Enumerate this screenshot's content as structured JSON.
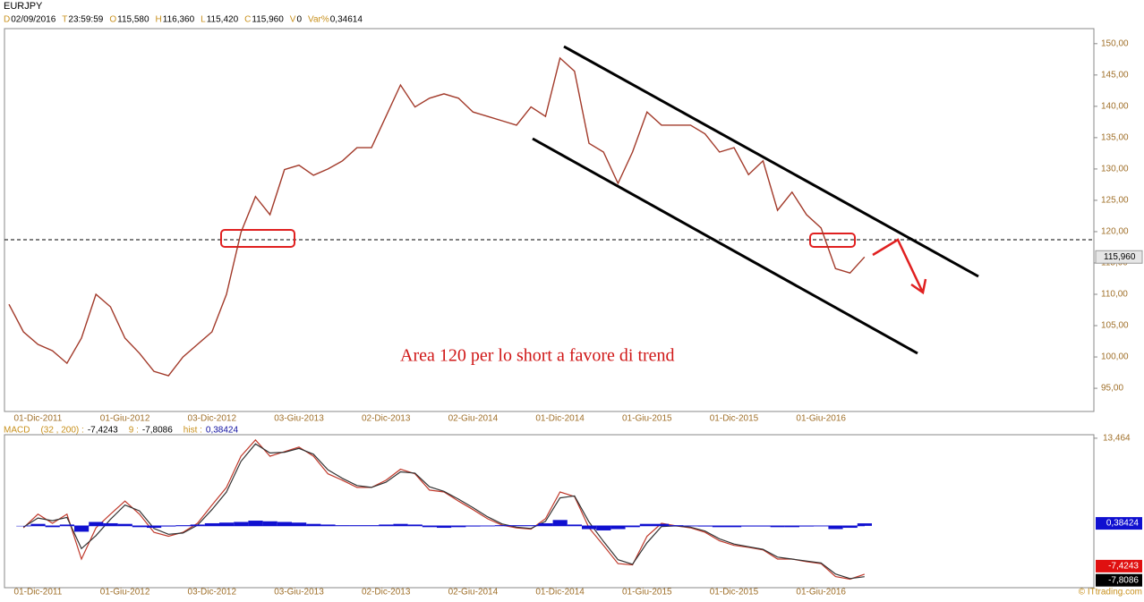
{
  "header": {
    "symbol": "EURJPY",
    "fields": [
      {
        "key": "D",
        "value": "02/09/2016"
      },
      {
        "key": "T",
        "value": "23:59:59"
      },
      {
        "key": "O",
        "value": "115,580"
      },
      {
        "key": "H",
        "value": "116,360"
      },
      {
        "key": "L",
        "value": "115,420"
      },
      {
        "key": "C",
        "value": "115,960"
      },
      {
        "key": "V",
        "value": "0"
      },
      {
        "key": "Var%",
        "value": "0,34614"
      }
    ],
    "copyright": "© ITtrading.com"
  },
  "chart_data": [
    {
      "type": "line",
      "annotation": "Area 120 per lo short a favore di trend",
      "color": "#a23a2a",
      "categories": [
        null,
        null,
        "01-Dic-2011",
        null,
        null,
        null,
        null,
        null,
        "01-Giu-2012",
        null,
        null,
        null,
        null,
        null,
        "03-Dic-2012",
        null,
        null,
        null,
        null,
        null,
        "03-Giu-2013",
        null,
        null,
        null,
        null,
        null,
        "02-Dic-2013",
        null,
        null,
        null,
        null,
        null,
        "02-Giu-2014",
        null,
        null,
        null,
        null,
        null,
        "01-Dic-2014",
        null,
        null,
        null,
        null,
        null,
        "01-Giu-2015",
        null,
        null,
        null,
        null,
        null,
        "01-Dic-2015",
        null,
        null,
        null,
        null,
        null,
        "01-Giu-2016",
        null,
        null,
        null
      ],
      "values": [
        108.4,
        104,
        102,
        101,
        99,
        103,
        110,
        108,
        103,
        100.6,
        97.7,
        97,
        100,
        102,
        104,
        110,
        119.9,
        125.6,
        122.7,
        129.9,
        130.6,
        129,
        130,
        131.3,
        133.4,
        133.4,
        138.4,
        143.4,
        139.9,
        141.3,
        142,
        141.3,
        139.1,
        138.4,
        137.7,
        137,
        139.9,
        138.4,
        147.7,
        145.6,
        134.1,
        132.7,
        127.7,
        132.7,
        139.1,
        137,
        137,
        137,
        135.6,
        132.7,
        133.4,
        129.1,
        131.3,
        123.4,
        126.3,
        122.7,
        120.6,
        114.1,
        113.4,
        115.96
      ],
      "last_value": {
        "value": 115.96,
        "label": "115,960"
      },
      "ylim": [
        91.3,
        152.4
      ],
      "yticks": [
        {
          "value": 95,
          "label": "95,00"
        },
        {
          "value": 100,
          "label": "100,00"
        },
        {
          "value": 105,
          "label": "105,00"
        },
        {
          "value": 110,
          "label": "110,00"
        },
        {
          "value": 115,
          "label": "115,00"
        },
        {
          "value": 120,
          "label": "120,00"
        },
        {
          "value": 125,
          "label": "125,00"
        },
        {
          "value": 130,
          "label": "130,00"
        },
        {
          "value": 135,
          "label": "135,00"
        },
        {
          "value": 140,
          "label": "140,00"
        },
        {
          "value": 145,
          "label": "145,00"
        },
        {
          "value": 150,
          "label": "150,00"
        }
      ]
    },
    {
      "type": "macd",
      "title": "MACD",
      "categories": [
        null,
        null,
        "01-Dic-2011",
        null,
        null,
        null,
        null,
        null,
        "01-Giu-2012",
        null,
        null,
        null,
        null,
        null,
        "03-Dic-2012",
        null,
        null,
        null,
        null,
        null,
        "03-Giu-2013",
        null,
        null,
        null,
        null,
        null,
        "02-Dic-2013",
        null,
        null,
        null,
        null,
        null,
        "02-Giu-2014",
        null,
        null,
        null,
        null,
        null,
        "01-Dic-2014",
        null,
        null,
        null,
        null,
        null,
        "01-Giu-2015",
        null,
        null,
        null,
        null,
        null,
        "01-Dic-2015",
        null,
        null,
        null,
        null,
        null,
        "01-Giu-2016",
        null,
        null,
        null
      ],
      "series": [
        {
          "name": "(32 , 200) :",
          "kind": "line",
          "color": "#c0392b",
          "box": "#e01010",
          "last_label": "-7,4243",
          "values": [
            null,
            -0.3,
            1.8,
            0.4,
            1.8,
            -5.1,
            -0.3,
            1.8,
            3.8,
            1.8,
            -1,
            -1.6,
            -1,
            0.4,
            3.2,
            5.9,
            10.7,
            13.2,
            10.7,
            11.4,
            12.1,
            10.7,
            8,
            7,
            5.9,
            5.9,
            7,
            8.7,
            8,
            5.5,
            5.2,
            3.8,
            2.5,
            1.1,
            0.1,
            -0.3,
            -0.5,
            1.1,
            5.2,
            4.5,
            -0.3,
            -3,
            -5.8,
            -6,
            -1.6,
            0.4,
            0,
            -0.3,
            -1,
            -2.3,
            -3,
            -3.3,
            -3.7,
            -5.1,
            -5.1,
            -5.5,
            -5.8,
            -7.8,
            -8.2,
            -7.4243
          ]
        },
        {
          "name": "9 :",
          "kind": "line",
          "color": "#333333",
          "box": "#000000",
          "last_label": "-7,8086",
          "values": [
            null,
            -0.2,
            1.2,
            0.8,
            1.3,
            -3.5,
            -1.5,
            1.0,
            3.2,
            2.3,
            -0.4,
            -1.3,
            -1.1,
            0.1,
            2.5,
            5.2,
            9.9,
            12.6,
            11.2,
            11.3,
            11.9,
            11.0,
            8.6,
            7.3,
            6.2,
            5.9,
            6.7,
            8.3,
            8.1,
            6.0,
            5.3,
            4.1,
            2.8,
            1.4,
            0.3,
            -0.2,
            -0.4,
            0.7,
            4.3,
            4.6,
            0.6,
            -2.4,
            -5.2,
            -5.9,
            -2.6,
            -0.1,
            0,
            -0.2,
            -0.8,
            -2.0,
            -2.8,
            -3.2,
            -3.6,
            -4.8,
            -5.1,
            -5.4,
            -5.7,
            -7.4,
            -8.1,
            -7.8086
          ]
        },
        {
          "name": "hist :",
          "kind": "bar",
          "color": "#1010d0",
          "box": "#1010d0",
          "last_label": "0,38424",
          "values": [
            null,
            0,
            0.3,
            -0.2,
            0.2,
            -0.9,
            0.6,
            0.4,
            0.3,
            -0.2,
            -0.3,
            -0.1,
            0.1,
            0.2,
            0.4,
            0.5,
            0.6,
            0.8,
            0.7,
            0.6,
            0.5,
            0.3,
            0.2,
            0.1,
            0.1,
            0.1,
            0.2,
            0.3,
            0.2,
            -0.2,
            -0.3,
            -0.2,
            -0.1,
            0,
            0.1,
            0.1,
            0.1,
            0.4,
            0.9,
            0.2,
            -0.5,
            -0.7,
            -0.5,
            -0.2,
            0.3,
            0.3,
            0.1,
            0,
            -0.1,
            -0.2,
            -0.2,
            -0.1,
            -0.1,
            -0.2,
            -0.2,
            -0.1,
            0,
            -0.5,
            -0.3,
            0.38424
          ]
        }
      ],
      "ylim": [
        -9.5,
        14
      ],
      "yticks": [
        {
          "value": 13.464,
          "label": "13,464"
        }
      ]
    }
  ]
}
